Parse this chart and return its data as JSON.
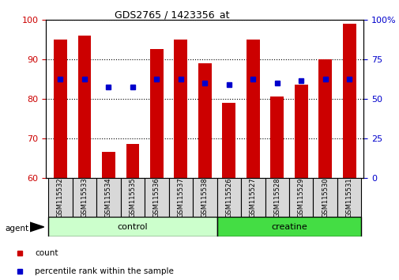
{
  "title": "GDS2765 / 1423356_at",
  "categories": [
    "GSM115532",
    "GSM115533",
    "GSM115534",
    "GSM115535",
    "GSM115536",
    "GSM115537",
    "GSM115538",
    "GSM115526",
    "GSM115527",
    "GSM115528",
    "GSM115529",
    "GSM115530",
    "GSM115531"
  ],
  "bar_values": [
    95,
    96,
    66.5,
    68.5,
    92.5,
    95,
    89,
    79,
    95,
    80.5,
    83.5,
    90,
    99
  ],
  "dot_values_left": [
    85,
    85,
    83,
    83,
    85,
    85,
    84,
    83.5,
    85,
    84,
    84.5,
    85,
    85
  ],
  "bar_color": "#cc0000",
  "dot_color": "#0000cc",
  "ylim_left": [
    60,
    100
  ],
  "ylim_right": [
    0,
    100
  ],
  "yticks_left": [
    60,
    70,
    80,
    90,
    100
  ],
  "yticks_right": [
    0,
    25,
    50,
    75,
    100
  ],
  "ytick_labels_right": [
    "0",
    "25",
    "50",
    "75",
    "100%"
  ],
  "groups": [
    {
      "label": "control",
      "indices": [
        0,
        1,
        2,
        3,
        4,
        5,
        6
      ],
      "color": "#ccffcc"
    },
    {
      "label": "creatine",
      "indices": [
        7,
        8,
        9,
        10,
        11,
        12
      ],
      "color": "#44dd44"
    }
  ],
  "agent_label": "agent",
  "legend": [
    {
      "label": "count",
      "color": "#cc0000"
    },
    {
      "label": "percentile rank within the sample",
      "color": "#0000cc"
    }
  ],
  "background_color": "#ffffff",
  "plot_bg_color": "#ffffff",
  "tick_label_color_left": "#cc0000",
  "tick_label_color_right": "#0000cc",
  "bar_bottom": 60
}
